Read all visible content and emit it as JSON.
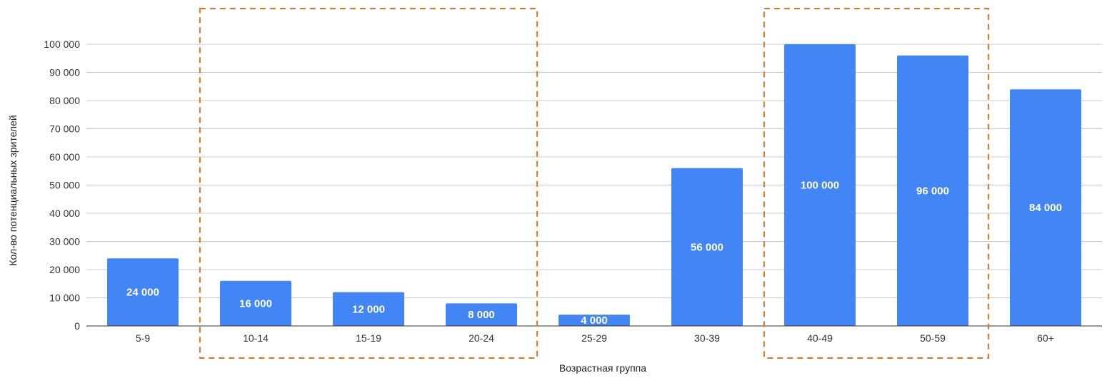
{
  "chart_data": {
    "type": "bar",
    "categories": [
      "5-9",
      "10-14",
      "15-19",
      "20-24",
      "25-29",
      "30-39",
      "40-49",
      "50-59",
      "60+"
    ],
    "values": [
      24000,
      16000,
      12000,
      8000,
      4000,
      56000,
      100000,
      96000,
      84000
    ],
    "data_labels": [
      "24 000",
      "16 000",
      "12 000",
      "8 000",
      "4 000",
      "56 000",
      "100 000",
      "96 000",
      "84 000"
    ],
    "xlabel": "Возрастная группа",
    "ylabel": "Кол-во потенциальных зрителей",
    "ylim": [
      0,
      100000
    ],
    "yticks": [
      0,
      10000,
      20000,
      30000,
      40000,
      50000,
      60000,
      70000,
      80000,
      90000,
      100000
    ],
    "ytick_labels": [
      "0",
      "10 000",
      "20 000",
      "30 000",
      "40 000",
      "50 000",
      "60 000",
      "70 000",
      "80 000",
      "90 000",
      "100 000"
    ],
    "grid": true,
    "bar_color": "#4285f4",
    "highlight_groups": [
      {
        "categories": [
          "10-14",
          "15-19",
          "20-24"
        ],
        "color": "#e8711c",
        "style": "dashed"
      },
      {
        "categories": [
          "40-49",
          "50-59"
        ],
        "color": "#e8711c",
        "style": "dashed"
      }
    ]
  }
}
